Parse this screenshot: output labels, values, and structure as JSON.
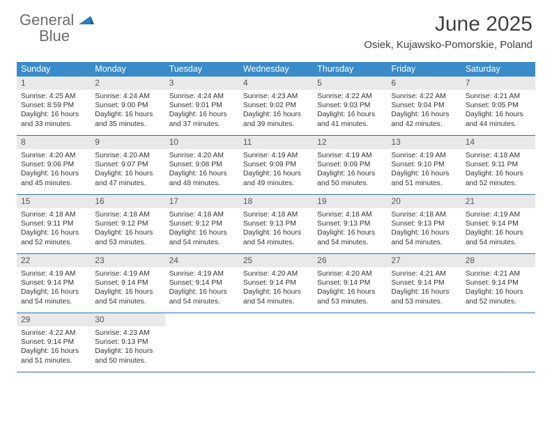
{
  "logo": {
    "word1": "General",
    "word2": "Blue"
  },
  "title": "June 2025",
  "location": "Osiek, Kujawsko-Pomorskie, Poland",
  "colors": {
    "header_bar": "#3a8bc9",
    "daynum_bg": "#e9e9e9",
    "row_border": "#2f6fa8",
    "title_color": "#414141",
    "logo_gray": "#6b6b6b",
    "logo_blue": "#2f7bbf"
  },
  "calendar": {
    "type": "table",
    "days_of_week": [
      "Sunday",
      "Monday",
      "Tuesday",
      "Wednesday",
      "Thursday",
      "Friday",
      "Saturday"
    ],
    "start_weekday": 0,
    "num_days": 30,
    "days": [
      {
        "n": 1,
        "sunrise": "4:25 AM",
        "sunset": "8:59 PM",
        "daylight": "16 hours and 33 minutes."
      },
      {
        "n": 2,
        "sunrise": "4:24 AM",
        "sunset": "9:00 PM",
        "daylight": "16 hours and 35 minutes."
      },
      {
        "n": 3,
        "sunrise": "4:24 AM",
        "sunset": "9:01 PM",
        "daylight": "16 hours and 37 minutes."
      },
      {
        "n": 4,
        "sunrise": "4:23 AM",
        "sunset": "9:02 PM",
        "daylight": "16 hours and 39 minutes."
      },
      {
        "n": 5,
        "sunrise": "4:22 AM",
        "sunset": "9:03 PM",
        "daylight": "16 hours and 41 minutes."
      },
      {
        "n": 6,
        "sunrise": "4:22 AM",
        "sunset": "9:04 PM",
        "daylight": "16 hours and 42 minutes."
      },
      {
        "n": 7,
        "sunrise": "4:21 AM",
        "sunset": "9:05 PM",
        "daylight": "16 hours and 44 minutes."
      },
      {
        "n": 8,
        "sunrise": "4:20 AM",
        "sunset": "9:06 PM",
        "daylight": "16 hours and 45 minutes."
      },
      {
        "n": 9,
        "sunrise": "4:20 AM",
        "sunset": "9:07 PM",
        "daylight": "16 hours and 47 minutes."
      },
      {
        "n": 10,
        "sunrise": "4:20 AM",
        "sunset": "9:08 PM",
        "daylight": "16 hours and 48 minutes."
      },
      {
        "n": 11,
        "sunrise": "4:19 AM",
        "sunset": "9:09 PM",
        "daylight": "16 hours and 49 minutes."
      },
      {
        "n": 12,
        "sunrise": "4:19 AM",
        "sunset": "9:09 PM",
        "daylight": "16 hours and 50 minutes."
      },
      {
        "n": 13,
        "sunrise": "4:19 AM",
        "sunset": "9:10 PM",
        "daylight": "16 hours and 51 minutes."
      },
      {
        "n": 14,
        "sunrise": "4:18 AM",
        "sunset": "9:11 PM",
        "daylight": "16 hours and 52 minutes."
      },
      {
        "n": 15,
        "sunrise": "4:18 AM",
        "sunset": "9:11 PM",
        "daylight": "16 hours and 52 minutes."
      },
      {
        "n": 16,
        "sunrise": "4:18 AM",
        "sunset": "9:12 PM",
        "daylight": "16 hours and 53 minutes."
      },
      {
        "n": 17,
        "sunrise": "4:18 AM",
        "sunset": "9:12 PM",
        "daylight": "16 hours and 54 minutes."
      },
      {
        "n": 18,
        "sunrise": "4:18 AM",
        "sunset": "9:13 PM",
        "daylight": "16 hours and 54 minutes."
      },
      {
        "n": 19,
        "sunrise": "4:18 AM",
        "sunset": "9:13 PM",
        "daylight": "16 hours and 54 minutes."
      },
      {
        "n": 20,
        "sunrise": "4:18 AM",
        "sunset": "9:13 PM",
        "daylight": "16 hours and 54 minutes."
      },
      {
        "n": 21,
        "sunrise": "4:19 AM",
        "sunset": "9:14 PM",
        "daylight": "16 hours and 54 minutes."
      },
      {
        "n": 22,
        "sunrise": "4:19 AM",
        "sunset": "9:14 PM",
        "daylight": "16 hours and 54 minutes."
      },
      {
        "n": 23,
        "sunrise": "4:19 AM",
        "sunset": "9:14 PM",
        "daylight": "16 hours and 54 minutes."
      },
      {
        "n": 24,
        "sunrise": "4:19 AM",
        "sunset": "9:14 PM",
        "daylight": "16 hours and 54 minutes."
      },
      {
        "n": 25,
        "sunrise": "4:20 AM",
        "sunset": "9:14 PM",
        "daylight": "16 hours and 54 minutes."
      },
      {
        "n": 26,
        "sunrise": "4:20 AM",
        "sunset": "9:14 PM",
        "daylight": "16 hours and 53 minutes."
      },
      {
        "n": 27,
        "sunrise": "4:21 AM",
        "sunset": "9:14 PM",
        "daylight": "16 hours and 53 minutes."
      },
      {
        "n": 28,
        "sunrise": "4:21 AM",
        "sunset": "9:14 PM",
        "daylight": "16 hours and 52 minutes."
      },
      {
        "n": 29,
        "sunrise": "4:22 AM",
        "sunset": "9:14 PM",
        "daylight": "16 hours and 51 minutes."
      },
      {
        "n": 30,
        "sunrise": "4:23 AM",
        "sunset": "9:13 PM",
        "daylight": "16 hours and 50 minutes."
      }
    ],
    "labels": {
      "sunrise": "Sunrise:",
      "sunset": "Sunset:",
      "daylight": "Daylight:"
    }
  }
}
